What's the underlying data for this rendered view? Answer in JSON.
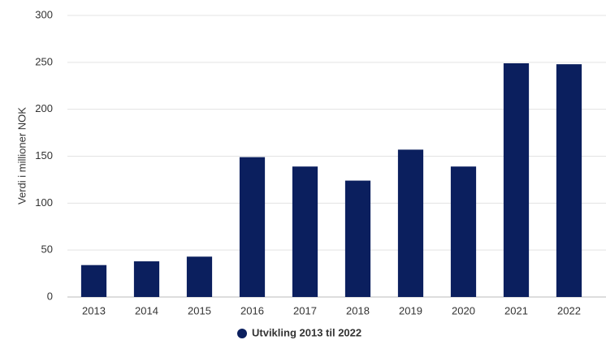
{
  "chart_data": {
    "type": "bar",
    "y_label": "Verdi i millioner NOK",
    "categories": [
      "2013",
      "2014",
      "2015",
      "2016",
      "2017",
      "2018",
      "2019",
      "2020",
      "2021",
      "2022"
    ],
    "series": [
      {
        "name": "Utvikling 2013 til 2022",
        "color": "#0b1f5e",
        "values": [
          34,
          38,
          43,
          149,
          139,
          124,
          157,
          139,
          249,
          248
        ]
      }
    ],
    "ylim": [
      0,
      300
    ],
    "yticks": [
      0,
      50,
      100,
      150,
      200,
      250,
      300
    ],
    "grid": true,
    "legend": "bottom"
  }
}
